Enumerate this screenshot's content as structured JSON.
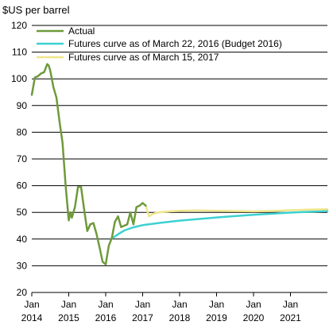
{
  "chart_data": {
    "type": "line",
    "ylabel": "$US per barrel",
    "ylim": [
      20,
      120
    ],
    "yticks": [
      20,
      30,
      40,
      50,
      60,
      70,
      80,
      90,
      100,
      110,
      120
    ],
    "xlim": [
      2014.0,
      2022.0
    ],
    "xticks": [
      {
        "x": 2014,
        "line1": "Jan",
        "line2": "2014"
      },
      {
        "x": 2015,
        "line1": "Jan",
        "line2": "2015"
      },
      {
        "x": 2016,
        "line1": "Jan",
        "line2": "2016"
      },
      {
        "x": 2017,
        "line1": "Jan",
        "line2": "2017"
      },
      {
        "x": 2018,
        "line1": "Jan",
        "line2": "2018"
      },
      {
        "x": 2019,
        "line1": "Jan",
        "line2": "2019"
      },
      {
        "x": 2020,
        "line1": "Jan",
        "line2": "2020"
      },
      {
        "x": 2021,
        "line1": "Jan",
        "line2": "2021"
      }
    ],
    "grid": "horizontal",
    "legend_position": "top-right",
    "series": [
      {
        "name": "Actual",
        "color": "#6e9a3c",
        "x": [
          2014.0,
          2014.083,
          2014.167,
          2014.25,
          2014.333,
          2014.417,
          2014.458,
          2014.5,
          2014.583,
          2014.667,
          2014.75,
          2014.833,
          2014.917,
          2015.0,
          2015.042,
          2015.083,
          2015.167,
          2015.25,
          2015.333,
          2015.417,
          2015.5,
          2015.583,
          2015.667,
          2015.75,
          2015.833,
          2015.917,
          2016.0,
          2016.083,
          2016.167,
          2016.25,
          2016.333,
          2016.417,
          2016.5,
          2016.583,
          2016.667,
          2016.75,
          2016.833,
          2016.917,
          2017.0,
          2017.083
        ],
        "y": [
          94,
          100.5,
          101,
          102,
          102.5,
          105.5,
          105,
          103,
          97,
          93,
          84,
          76,
          60,
          47,
          50,
          48,
          52,
          59.5,
          59.5,
          51,
          43,
          45.5,
          46,
          42,
          37,
          31.5,
          30.5,
          37.5,
          40.5,
          46.5,
          48.5,
          44.5,
          45,
          45.5,
          50,
          45.5,
          52,
          52.5,
          53.5,
          52.5
        ]
      },
      {
        "name": "Futures curve as of March 22, 2016 (Budget 2016)",
        "color": "#3dd1d1",
        "x": [
          2016.167,
          2016.333,
          2016.5,
          2016.75,
          2017.0,
          2017.5,
          2018.0,
          2018.5,
          2019.0,
          2019.5,
          2020.0,
          2020.5,
          2021.0,
          2021.5,
          2022.0
        ],
        "y": [
          40.2,
          41.8,
          43.2,
          44.4,
          45.2,
          46.1,
          46.9,
          47.5,
          48.1,
          48.6,
          49.1,
          49.5,
          49.9,
          50.2,
          50.5
        ]
      },
      {
        "name": "Futures curve as of March 15, 2017",
        "color": "#f0e68c",
        "x": [
          2017.083,
          2017.167,
          2017.25,
          2017.333,
          2017.5,
          2017.75,
          2018.0,
          2018.5,
          2019.0,
          2019.5,
          2020.0,
          2020.5,
          2021.0,
          2021.5,
          2022.0
        ],
        "y": [
          52.5,
          48.5,
          49.2,
          49.7,
          50.1,
          50.4,
          50.6,
          50.7,
          50.6,
          50.5,
          50.4,
          50.5,
          50.8,
          51.0,
          51.2
        ]
      }
    ]
  }
}
